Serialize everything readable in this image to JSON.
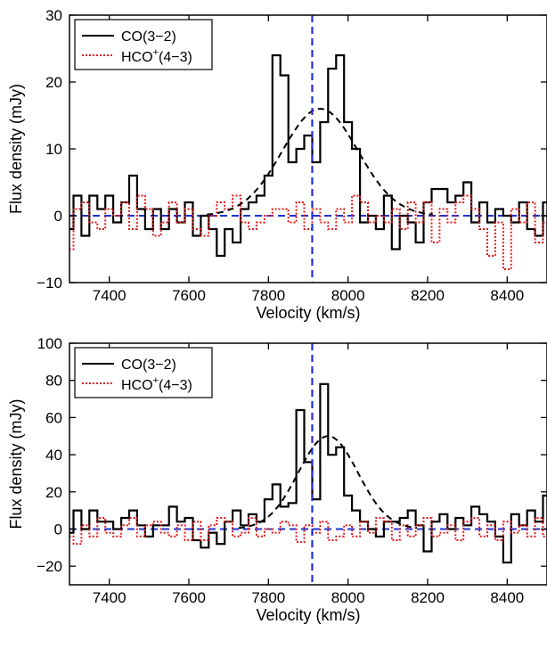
{
  "colors": {
    "co_line": "#000000",
    "hco_line": "#e41a1c",
    "gauss_fit": "#000000",
    "systemic": "#1f32d6",
    "zero_line": "#1f32d6"
  },
  "chart_data": [
    {
      "type": "line",
      "xlabel": "Velocity (km/s)",
      "ylabel": "Flux density (mJy)",
      "xlim": [
        7300,
        8500
      ],
      "ylim": [
        -10,
        30
      ],
      "xticks": [
        "7400",
        "7600",
        "7800",
        "8000",
        "8200",
        "8400"
      ],
      "yticks": [
        "-10",
        "0",
        "10",
        "20",
        "30"
      ],
      "ytick_values": [
        -10,
        0,
        10,
        20,
        30
      ],
      "legend": {
        "placement": "top-left",
        "co_label": "CO(3−2)",
        "hco_base": "HCO",
        "hco_sup": "+",
        "hco_trans": "(4−3)"
      },
      "systemic_velocity": 7910,
      "bin_width": 20,
      "series": [
        {
          "name": "CO(3−2)",
          "style": "solid-step",
          "x_start": 7290,
          "values": [
            -2,
            3,
            -3,
            3,
            1,
            3,
            -1,
            2,
            6,
            1,
            -2,
            1,
            -2,
            1,
            -1,
            2,
            -3,
            0,
            -2,
            -6,
            -2,
            -4,
            1,
            2,
            3,
            6,
            24,
            21,
            8,
            10,
            12,
            8,
            14,
            22,
            24,
            14,
            10,
            -1,
            0,
            -2,
            3,
            -5,
            0,
            -1,
            -4,
            2,
            4,
            4,
            2,
            3,
            5,
            -1,
            2,
            -1,
            1,
            0,
            -1,
            2,
            -2,
            -3,
            2
          ]
        },
        {
          "name": "HCO+(4−3)",
          "style": "dotted-step",
          "x_start": 7290,
          "values": [
            -5,
            1,
            2,
            -1,
            -2,
            1,
            0,
            2,
            -2,
            3,
            1,
            -3,
            -1,
            2,
            -1,
            1,
            -2,
            -3,
            0,
            2,
            1,
            3,
            -1,
            -2,
            -1,
            0,
            1,
            1,
            -1,
            2,
            -2,
            1,
            -1,
            -2,
            1,
            -1,
            3,
            2,
            -1,
            0,
            -1,
            1,
            -2,
            2,
            -1,
            2,
            -4,
            1,
            -1,
            2,
            3,
            1,
            -2,
            -6,
            -1,
            -8,
            1,
            -1,
            2,
            -4,
            -1
          ]
        }
      ],
      "gaussian_fit": {
        "amplitude": 16,
        "center": 7930,
        "sigma": 95
      }
    },
    {
      "type": "line",
      "xlabel": "Velocity (km/s)",
      "ylabel": "Flux density (mJy)",
      "xlim": [
        7300,
        8500
      ],
      "ylim": [
        -30,
        100
      ],
      "xticks": [
        "7400",
        "7600",
        "7800",
        "8000",
        "8200",
        "8400"
      ],
      "yticks": [
        "-20",
        "0",
        "20",
        "40",
        "60",
        "80",
        "100"
      ],
      "ytick_values": [
        -20,
        0,
        20,
        40,
        60,
        80,
        100
      ],
      "legend": {
        "placement": "top-left",
        "co_label": "CO(3−2)",
        "hco_base": "HCO",
        "hco_sup": "+",
        "hco_trans": "(4−3)"
      },
      "systemic_velocity": 7910,
      "bin_width": 20,
      "series": [
        {
          "name": "CO(3−2)",
          "style": "solid-step",
          "x_start": 7290,
          "values": [
            -2,
            10,
            0,
            10,
            4,
            4,
            0,
            6,
            10,
            2,
            -4,
            2,
            2,
            12,
            4,
            6,
            -6,
            -10,
            -2,
            -8,
            4,
            10,
            2,
            8,
            4,
            16,
            24,
            12,
            14,
            64,
            36,
            16,
            78,
            40,
            44,
            18,
            10,
            4,
            0,
            -4,
            4,
            4,
            6,
            10,
            2,
            -12,
            4,
            8,
            0,
            6,
            2,
            12,
            8,
            4,
            -4,
            -18,
            8,
            2,
            10,
            4,
            18
          ]
        },
        {
          "name": "HCO+(4−3)",
          "style": "dotted-step",
          "x_start": 7290,
          "values": [
            -4,
            -8,
            2,
            -4,
            6,
            -2,
            -4,
            2,
            6,
            -4,
            2,
            4,
            -2,
            -4,
            2,
            -6,
            4,
            -6,
            2,
            6,
            4,
            -4,
            -2,
            6,
            -4,
            0,
            -2,
            4,
            2,
            -7,
            2,
            -2,
            4,
            -6,
            -4,
            2,
            -4,
            4,
            -2,
            6,
            4,
            -6,
            2,
            -4,
            2,
            6,
            -4,
            -2,
            2,
            -6,
            4,
            6,
            -4,
            2,
            -6,
            4,
            -2,
            2,
            -4,
            6,
            -4
          ]
        }
      ],
      "gaussian_fit": {
        "amplitude": 50,
        "center": 7950,
        "sigma": 75
      }
    }
  ]
}
